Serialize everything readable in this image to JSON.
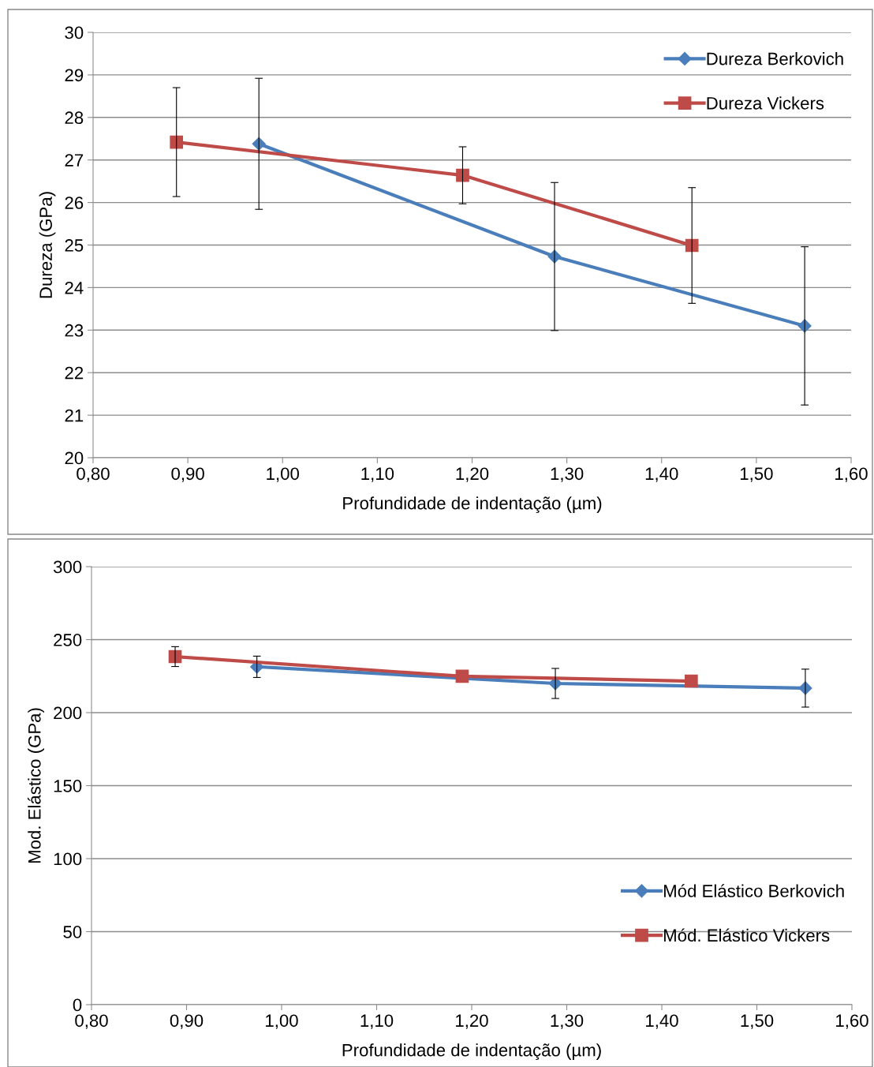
{
  "chart_data": [
    {
      "type": "line",
      "xlabel": "Profundidade de indentação (µm)",
      "ylabel": "Dureza (GPa)",
      "xlim": [
        0.8,
        1.6
      ],
      "ylim": [
        20,
        30
      ],
      "xticks": [
        {
          "value": 0.8,
          "label": "0,80"
        },
        {
          "value": 0.9,
          "label": "0,90"
        },
        {
          "value": 1.0,
          "label": "1,00"
        },
        {
          "value": 1.1,
          "label": "1,10"
        },
        {
          "value": 1.2,
          "label": "1,20"
        },
        {
          "value": 1.3,
          "label": "1,30"
        },
        {
          "value": 1.4,
          "label": "1,40"
        },
        {
          "value": 1.5,
          "label": "1,50"
        },
        {
          "value": 1.6,
          "label": "1,60"
        }
      ],
      "yticks": [
        20,
        21,
        22,
        23,
        24,
        25,
        26,
        27,
        28,
        29,
        30
      ],
      "grid": "y",
      "legend": "top right",
      "series": [
        {
          "name": "Dureza Berkovich",
          "color": "#4a7ebb",
          "marker": "diamond",
          "x": [
            0.975,
            1.287,
            1.551
          ],
          "values": [
            27.38,
            24.73,
            23.1
          ],
          "errors": [
            1.54,
            1.74,
            1.86
          ]
        },
        {
          "name": "Dureza Vickers",
          "color": "#be4b48",
          "marker": "square",
          "x": [
            0.888,
            1.19,
            1.432
          ],
          "values": [
            27.42,
            26.64,
            24.99
          ],
          "errors": [
            1.28,
            0.67,
            1.36
          ]
        }
      ]
    },
    {
      "type": "line",
      "xlabel": "Profundidade de indentação (µm)",
      "ylabel": "Mod. Elástico (GPa)",
      "xlim": [
        0.8,
        1.6
      ],
      "ylim": [
        0,
        300
      ],
      "xticks": [
        {
          "value": 0.8,
          "label": "0,80"
        },
        {
          "value": 0.9,
          "label": "0,90"
        },
        {
          "value": 1.0,
          "label": "1,00"
        },
        {
          "value": 1.1,
          "label": "1,10"
        },
        {
          "value": 1.2,
          "label": "1,20"
        },
        {
          "value": 1.3,
          "label": "1,30"
        },
        {
          "value": 1.4,
          "label": "1,40"
        },
        {
          "value": 1.5,
          "label": "1,50"
        },
        {
          "value": 1.6,
          "label": "1,60"
        }
      ],
      "yticks": [
        0,
        50,
        100,
        150,
        200,
        250,
        300
      ],
      "grid": "y",
      "legend": "bottom right",
      "series": [
        {
          "name": "Mód Elástico Berkovich",
          "color": "#4a7ebb",
          "marker": "diamond",
          "x": [
            0.974,
            1.288,
            1.551
          ],
          "values": [
            231.4,
            220,
            216.8
          ],
          "errors": [
            7.3,
            10.3,
            13
          ]
        },
        {
          "name": "Mód. Elástico Vickers",
          "color": "#be4b48",
          "marker": "square",
          "x": [
            0.888,
            1.19,
            1.431
          ],
          "values": [
            238.4,
            224.9,
            221.6
          ],
          "errors": [
            6.8,
            null,
            null
          ]
        }
      ]
    }
  ]
}
